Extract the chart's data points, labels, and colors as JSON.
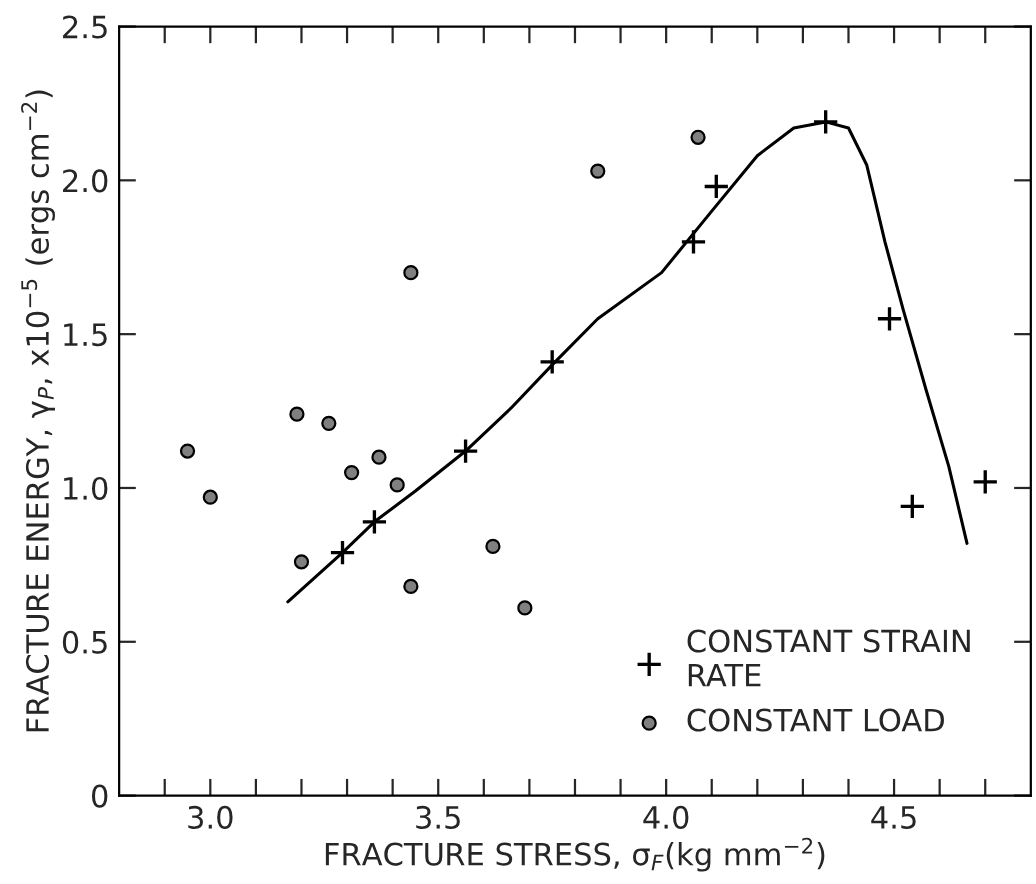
{
  "chart_data": {
    "type": "scatter",
    "xlabel": "FRACTURE STRESS, σ$_{F}$(kg mm$^{−2}$)",
    "ylabel": "FRACTURE ENERGY, γ$_{P}$, x10$^{−5}$ (ergs cm$^{−2}$)",
    "xlim": [
      2.8,
      4.8
    ],
    "ylim": [
      0,
      2.5
    ],
    "xticks": [
      {
        "value": 2.9,
        "label": null
      },
      {
        "value": 3.0,
        "label": "3.0"
      },
      {
        "value": 3.1,
        "label": null
      },
      {
        "value": 3.2,
        "label": null
      },
      {
        "value": 3.3,
        "label": null
      },
      {
        "value": 3.4,
        "label": null
      },
      3.5,
      {
        "value": 3.6,
        "label": null
      },
      {
        "value": 3.7,
        "label": null
      },
      {
        "value": 3.8,
        "label": null
      },
      {
        "value": 3.9,
        "label": null
      },
      {
        "value": 4.0,
        "label": "4.0"
      },
      {
        "value": 4.1,
        "label": null
      },
      {
        "value": 4.2,
        "label": null
      },
      {
        "value": 4.3,
        "label": null
      },
      {
        "value": 4.4,
        "label": null
      },
      4.5,
      {
        "value": 4.6,
        "label": null
      },
      {
        "value": 4.7,
        "label": null
      }
    ],
    "yticks": [
      0,
      0.5,
      {
        "value": 1.0,
        "label": "1.0"
      },
      1.5,
      {
        "value": 2.0,
        "label": "2.0"
      },
      2.5
    ],
    "grid": false,
    "legend": "bottom right",
    "series": [
      {
        "name": "CONSTANT STRAIN\nRATE",
        "marker": "cross",
        "color": "#000000",
        "x": [
          3.29,
          3.36,
          3.56,
          3.75,
          4.06,
          4.11,
          4.35,
          4.49,
          4.54,
          4.7
        ],
        "values": [
          0.79,
          0.89,
          1.12,
          1.41,
          1.8,
          1.98,
          2.19,
          1.55,
          0.94,
          1.02
        ]
      },
      {
        "name": "CONSTANT LOAD",
        "marker": "circle",
        "color": "#808080",
        "x": [
          2.95,
          3.0,
          3.19,
          3.2,
          3.26,
          3.31,
          3.37,
          3.41,
          3.44,
          3.44,
          3.62,
          3.69,
          3.85,
          4.07
        ],
        "values": [
          1.12,
          0.97,
          1.24,
          0.76,
          1.21,
          1.05,
          1.1,
          1.01,
          1.7,
          0.68,
          0.81,
          0.61,
          2.03,
          2.14
        ]
      },
      {
        "type": "line",
        "marker": "none",
        "line_style": "solid",
        "color": "#000000",
        "x": [
          3.17,
          3.29,
          3.36,
          3.45,
          3.56,
          3.66,
          3.75,
          3.85,
          3.99,
          4.1,
          4.2,
          4.28,
          4.35,
          4.4,
          4.44,
          4.48,
          4.52,
          4.57,
          4.62,
          4.66
        ],
        "values": [
          0.63,
          0.79,
          0.89,
          0.99,
          1.12,
          1.26,
          1.4,
          1.55,
          1.7,
          1.9,
          2.08,
          2.17,
          2.19,
          2.17,
          2.05,
          1.8,
          1.58,
          1.32,
          1.07,
          0.82
        ]
      }
    ]
  }
}
